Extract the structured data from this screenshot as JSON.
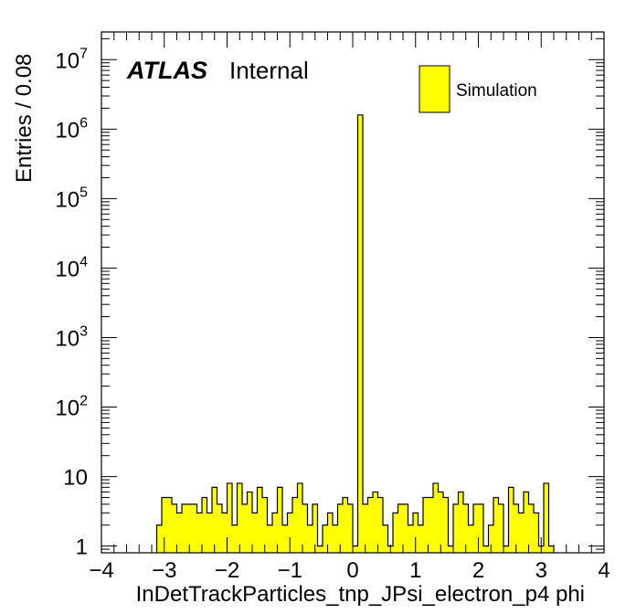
{
  "chart_data": {
    "type": "bar",
    "xlabel": "InDetTrackParticles_tnp_JPsi_electron_p4 phi",
    "ylabel": "Entries / 0.08",
    "xlim": [
      -4,
      4
    ],
    "ylim": [
      0.8,
      25000000
    ],
    "yscale": "log",
    "bin_width": 0.08,
    "x_ticks": [
      "−4",
      "−3",
      "−2",
      "−1",
      "0",
      "1",
      "2",
      "3",
      "4"
    ],
    "y_ticks": [
      {
        "value": 1,
        "base": "1",
        "exp": ""
      },
      {
        "value": 10,
        "base": "10",
        "exp": ""
      },
      {
        "value": 100,
        "base": "10",
        "exp": "2"
      },
      {
        "value": 1000,
        "base": "10",
        "exp": "3"
      },
      {
        "value": 10000,
        "base": "10",
        "exp": "4"
      },
      {
        "value": 100000,
        "base": "10",
        "exp": "5"
      },
      {
        "value": 1000000,
        "base": "10",
        "exp": "6"
      },
      {
        "value": 10000000,
        "base": "10",
        "exp": "7"
      }
    ],
    "atlas_label": "ATLAS",
    "atlas_sublabel": "Internal",
    "legend": {
      "position": "top-right",
      "entries": [
        {
          "name": "Simulation",
          "color": "#ffff00"
        }
      ]
    },
    "fill_color": "#ffff00",
    "edge_color": "#000000",
    "bins": [
      {
        "x": -3.12,
        "y": 2
      },
      {
        "x": -3.04,
        "y": 5
      },
      {
        "x": -2.96,
        "y": 5
      },
      {
        "x": -2.88,
        "y": 4
      },
      {
        "x": -2.8,
        "y": 3
      },
      {
        "x": -2.72,
        "y": 4
      },
      {
        "x": -2.64,
        "y": 4
      },
      {
        "x": -2.56,
        "y": 4
      },
      {
        "x": -2.48,
        "y": 3
      },
      {
        "x": -2.4,
        "y": 5
      },
      {
        "x": -2.32,
        "y": 3
      },
      {
        "x": -2.24,
        "y": 7
      },
      {
        "x": -2.16,
        "y": 4
      },
      {
        "x": -2.08,
        "y": 3
      },
      {
        "x": -2.0,
        "y": 8
      },
      {
        "x": -1.92,
        "y": 2
      },
      {
        "x": -1.84,
        "y": 8
      },
      {
        "x": -1.76,
        "y": 4
      },
      {
        "x": -1.68,
        "y": 6
      },
      {
        "x": -1.6,
        "y": 3
      },
      {
        "x": -1.52,
        "y": 7
      },
      {
        "x": -1.44,
        "y": 5
      },
      {
        "x": -1.36,
        "y": 2
      },
      {
        "x": -1.28,
        "y": 3
      },
      {
        "x": -1.2,
        "y": 7
      },
      {
        "x": -1.12,
        "y": 2
      },
      {
        "x": -1.04,
        "y": 3
      },
      {
        "x": -0.96,
        "y": 5
      },
      {
        "x": -0.88,
        "y": 8
      },
      {
        "x": -0.8,
        "y": 4
      },
      {
        "x": -0.72,
        "y": 2
      },
      {
        "x": -0.64,
        "y": 4
      },
      {
        "x": -0.56,
        "y": 1
      },
      {
        "x": -0.48,
        "y": 2
      },
      {
        "x": -0.4,
        "y": 3
      },
      {
        "x": -0.32,
        "y": 2
      },
      {
        "x": -0.24,
        "y": 4
      },
      {
        "x": -0.16,
        "y": 5
      },
      {
        "x": -0.08,
        "y": 4
      },
      {
        "x": 0.0,
        "y": 1
      },
      {
        "x": 0.08,
        "y": 1600000
      },
      {
        "x": 0.16,
        "y": 4
      },
      {
        "x": 0.24,
        "y": 5
      },
      {
        "x": 0.32,
        "y": 6
      },
      {
        "x": 0.4,
        "y": 5
      },
      {
        "x": 0.48,
        "y": 2
      },
      {
        "x": 0.56,
        "y": 1
      },
      {
        "x": 0.64,
        "y": 3
      },
      {
        "x": 0.72,
        "y": 4
      },
      {
        "x": 0.8,
        "y": 4
      },
      {
        "x": 0.88,
        "y": 2
      },
      {
        "x": 0.96,
        "y": 3
      },
      {
        "x": 1.04,
        "y": 2
      },
      {
        "x": 1.12,
        "y": 5
      },
      {
        "x": 1.2,
        "y": 5
      },
      {
        "x": 1.28,
        "y": 8
      },
      {
        "x": 1.36,
        "y": 6
      },
      {
        "x": 1.44,
        "y": 5
      },
      {
        "x": 1.52,
        "y": 1
      },
      {
        "x": 1.6,
        "y": 4
      },
      {
        "x": 1.68,
        "y": 6
      },
      {
        "x": 1.76,
        "y": 4
      },
      {
        "x": 1.84,
        "y": 2
      },
      {
        "x": 1.92,
        "y": 4
      },
      {
        "x": 2.0,
        "y": 4
      },
      {
        "x": 2.08,
        "y": 1
      },
      {
        "x": 2.16,
        "y": 2
      },
      {
        "x": 2.24,
        "y": 5
      },
      {
        "x": 2.32,
        "y": 4
      },
      {
        "x": 2.4,
        "y": 1
      },
      {
        "x": 2.48,
        "y": 7
      },
      {
        "x": 2.56,
        "y": 4
      },
      {
        "x": 2.64,
        "y": 3
      },
      {
        "x": 2.72,
        "y": 6
      },
      {
        "x": 2.8,
        "y": 4
      },
      {
        "x": 2.88,
        "y": 3
      },
      {
        "x": 2.96,
        "y": 1
      },
      {
        "x": 3.04,
        "y": 8
      },
      {
        "x": 3.12,
        "y": 1
      }
    ]
  }
}
